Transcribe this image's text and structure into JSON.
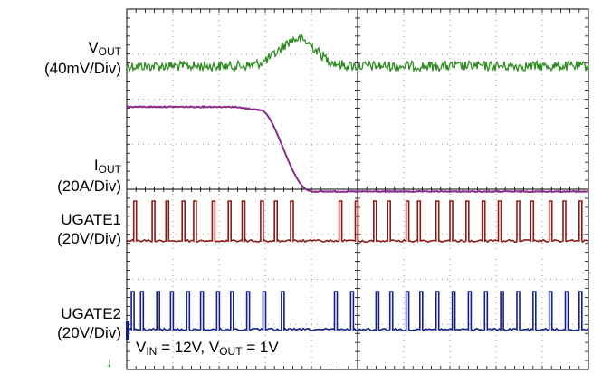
{
  "chart_data": {
    "type": "line",
    "title": "",
    "grid": true,
    "horizontal_divisions": 10,
    "vertical_divisions": 8,
    "channels": [
      {
        "name_main": "V",
        "name_sub": "OUT",
        "scale": "(40mV/Div)",
        "color": "#2e8b22",
        "description": "output voltage with noise, bump at load release"
      },
      {
        "name_main": "I",
        "name_sub": "OUT",
        "scale": "(20A/Div)",
        "color": "#8b2a8b",
        "description": "output current stepping down from high to low load"
      },
      {
        "name_main": "UGATE1",
        "name_sub": "",
        "scale": "(20V/Div)",
        "color": "#8b1a1a",
        "description": "phase 1 upper gate pulses"
      },
      {
        "name_main": "UGATE2",
        "name_sub": "",
        "scale": "(20V/Div)",
        "color": "#141e8c",
        "description": "phase 2 upper gate pulses"
      }
    ],
    "ugate1_pulse_positions_div": [
      0.15,
      0.55,
      0.85,
      1.2,
      1.45,
      1.85,
      2.2,
      2.5,
      2.9,
      3.2,
      3.55,
      4.6,
      4.95,
      5.35,
      5.65,
      6.05,
      6.3,
      6.7,
      7.0,
      7.35,
      7.7,
      8.05,
      8.45,
      8.75,
      9.15,
      9.45,
      9.8
    ],
    "ugate2_pulse_positions_div": [
      0.1,
      0.3,
      0.65,
      0.95,
      1.3,
      1.6,
      1.95,
      2.25,
      2.6,
      2.95,
      3.35,
      4.5,
      4.85,
      5.4,
      5.7,
      6.05,
      6.35,
      6.7,
      7.05,
      7.4,
      7.75,
      8.1,
      8.45,
      8.8,
      9.15,
      9.5,
      9.8
    ]
  },
  "annotation": {
    "vin_main": "V",
    "vin_sub": "IN",
    "vin_value": " = 12V, ",
    "vout_main": "V",
    "vout_sub": "OUT",
    "vout_value": " = 1V"
  },
  "ground_marker": "↓"
}
